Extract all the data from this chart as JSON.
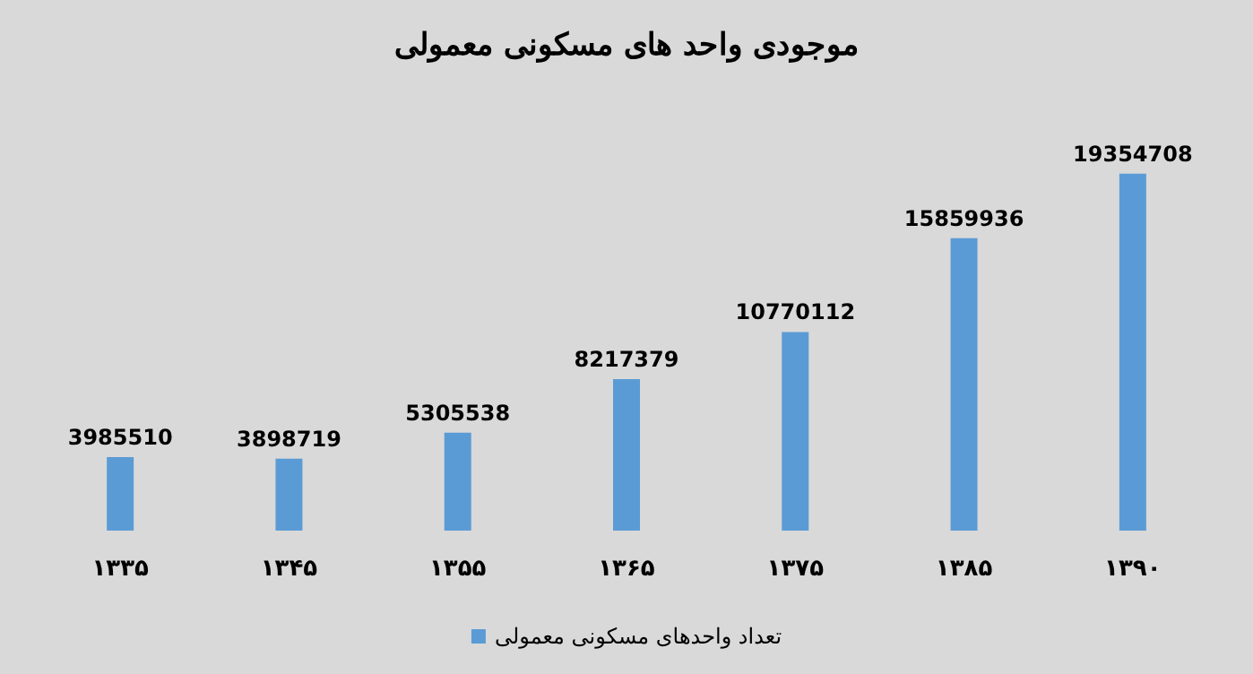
{
  "chart_data": {
    "type": "bar",
    "title": "موجودی واحد های مسکونی معمولی",
    "categories": [
      "۱۳۳۵",
      "۱۳۴۵",
      "۱۳۵۵",
      "۱۳۶۵",
      "۱۳۷۵",
      "۱۳۸۵",
      "۱۳۹۰"
    ],
    "series": [
      {
        "name": "تعداد واحدهای مسکونی معمولی",
        "color": "#5b9bd5",
        "values": [
          3985510,
          3898719,
          5305538,
          8217379,
          10770112,
          15859936,
          19354708
        ]
      }
    ],
    "data_labels": true,
    "legend": "bottom",
    "grid": false
  }
}
